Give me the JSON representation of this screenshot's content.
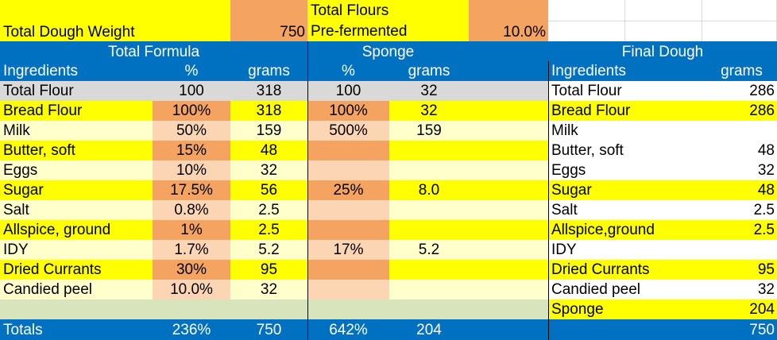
{
  "colors": {
    "yellow": "#FFFF00",
    "orange": "#F4A460",
    "peach": "#FCD5B4",
    "cream": "#FFFFCC",
    "blue": "#0070C0",
    "gray": "#D9D9D9",
    "sage": "#D8E4BC",
    "white": "#FFFFFF"
  },
  "top": {
    "total_dough_label": "Total Dough Weight",
    "total_dough_value": "750",
    "total_flours_label": "Total Flours",
    "prefermented_label": "Pre-fermented",
    "prefermented_value": "10.0%"
  },
  "sections": {
    "total_formula": "Total Formula",
    "sponge": "Sponge",
    "final_dough": "Final Dough"
  },
  "columns": {
    "ingredients": "Ingredients",
    "percent": "%",
    "grams": "grams",
    "sponge_percent": "%",
    "sponge_grams": "grams",
    "final_ingredients": "Ingredients",
    "final_grams": "grams"
  },
  "rows": [
    {
      "name": "Total Flour",
      "pct": "100",
      "grams": "318",
      "s_pct": "100",
      "s_grams": "32",
      "f_name": "Total Flour",
      "f_grams": "286"
    },
    {
      "name": "Bread Flour",
      "pct": "100%",
      "grams": "318",
      "s_pct": "100%",
      "s_grams": "32",
      "f_name": "Bread Flour",
      "f_grams": "286"
    },
    {
      "name": "Milk",
      "pct": "50%",
      "grams": "159",
      "s_pct": "500%",
      "s_grams": "159",
      "f_name": "Milk",
      "f_grams": ""
    },
    {
      "name": "Butter, soft",
      "pct": "15%",
      "grams": "48",
      "s_pct": "",
      "s_grams": "",
      "f_name": "Butter, soft",
      "f_grams": "48"
    },
    {
      "name": "Eggs",
      "pct": "10%",
      "grams": "32",
      "s_pct": "",
      "s_grams": "",
      "f_name": "Eggs",
      "f_grams": "32"
    },
    {
      "name": "Sugar",
      "pct": "17.5%",
      "grams": "56",
      "s_pct": "25%",
      "s_grams": "8.0",
      "f_name": "Sugar",
      "f_grams": "48"
    },
    {
      "name": "Salt",
      "pct": "0.8%",
      "grams": "2.5",
      "s_pct": "",
      "s_grams": "",
      "f_name": "Salt",
      "f_grams": "2.5"
    },
    {
      "name": "Allspice, ground",
      "pct": "1%",
      "grams": "2.5",
      "s_pct": "",
      "s_grams": "",
      "f_name": "Allspice,ground",
      "f_grams": "2.5"
    },
    {
      "name": "IDY",
      "pct": "1.7%",
      "grams": "5.2",
      "s_pct": "17%",
      "s_grams": "5.2",
      "f_name": "IDY",
      "f_grams": ""
    },
    {
      "name": "Dried Currants",
      "pct": "30%",
      "grams": "95",
      "s_pct": "",
      "s_grams": "",
      "f_name": "Dried Currants",
      "f_grams": "95"
    },
    {
      "name": "Candied peel",
      "pct": "10.0%",
      "grams": "32",
      "s_pct": "",
      "s_grams": "",
      "f_name": "Candied peel",
      "f_grams": "32"
    },
    {
      "name": "",
      "pct": "",
      "grams": "",
      "s_pct": "",
      "s_grams": "",
      "f_name": "Sponge",
      "f_grams": "204"
    }
  ],
  "totals": {
    "label": "Totals",
    "pct": "236%",
    "grams": "750",
    "s_pct": "642%",
    "s_grams": "204",
    "f_grams": "750"
  }
}
